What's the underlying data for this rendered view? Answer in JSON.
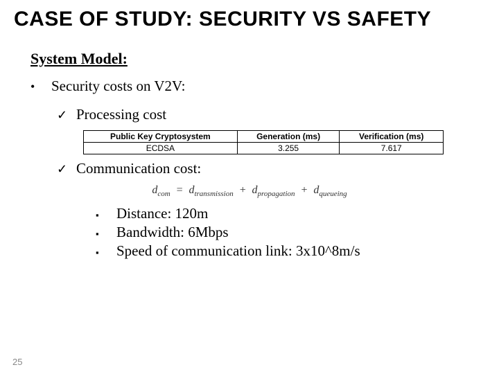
{
  "title": "CASE OF STUDY: SECURITY VS SAFETY",
  "subhead": "System Model:",
  "lvl1_text": "Security costs on V2V:",
  "proc_label": "Processing cost",
  "comm_label": "Communication cost:",
  "table": {
    "headers": [
      "Public Key Cryptosystem",
      "Generation (ms)",
      "Verification (ms)"
    ],
    "row": [
      "ECDSA",
      "3.255",
      "7.617"
    ]
  },
  "formula": {
    "lhs_var": "d",
    "lhs_sub": "com",
    "t1_var": "d",
    "t1_sub": "transmission",
    "t2_var": "d",
    "t2_sub": "propagation",
    "t3_var": "d",
    "t3_sub": "queueing"
  },
  "params": [
    "Distance: 120m",
    "Bandwidth: 6Mbps",
    "Speed of communication link: 3x10^8m/s"
  ],
  "page_number": "25"
}
